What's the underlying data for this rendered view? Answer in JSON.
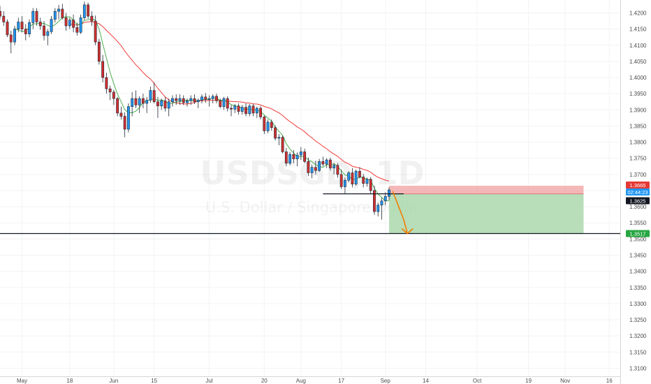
{
  "chart_data": {
    "type": "candlestick",
    "watermark": {
      "symbol": "USDSGD, 1D",
      "description": "U.S. Dollar / Singapore Dollar"
    },
    "y_axis": {
      "ticks": [
        "1.4200",
        "1.4150",
        "1.4100",
        "1.4050",
        "1.4000",
        "1.3950",
        "1.3900",
        "1.3850",
        "1.3800",
        "1.3750",
        "1.3700",
        "1.3650",
        "1.3600",
        "1.3550",
        "1.3500",
        "1.3450",
        "1.3400",
        "1.3350",
        "1.3300",
        "1.3250",
        "1.3200",
        "1.3150",
        "1.3100"
      ],
      "range": [
        1.3075,
        1.424
      ]
    },
    "x_axis": {
      "ticks": [
        {
          "label": "May",
          "x": 0
        },
        {
          "label": "18",
          "x": 13
        },
        {
          "label": "Jun",
          "x": 25
        },
        {
          "label": "15",
          "x": 36
        },
        {
          "label": "Jul",
          "x": 51
        },
        {
          "label": "20",
          "x": 66
        },
        {
          "label": "Aug",
          "x": 76
        },
        {
          "label": "17",
          "x": 87
        },
        {
          "label": "Sep",
          "x": 99
        },
        {
          "label": "14",
          "x": 110
        },
        {
          "label": "Oct",
          "x": 124
        },
        {
          "label": "19",
          "x": 138
        },
        {
          "label": "Nov",
          "x": 148
        },
        {
          "label": "16",
          "x": 160
        }
      ],
      "range": [
        -6,
        163
      ]
    },
    "colors": {
      "up": "#2196f3",
      "down": "#d32f2f",
      "fast_ma": "#4caf50",
      "slow_ma": "#f23b3b"
    },
    "candles": [
      [
        -6,
        1.4205,
        1.4222,
        1.418,
        1.419
      ],
      [
        -5,
        1.419,
        1.4205,
        1.416,
        1.4172
      ],
      [
        -4,
        1.4172,
        1.418,
        1.4125,
        1.4132
      ],
      [
        -3,
        1.4132,
        1.4145,
        1.4075,
        1.411
      ],
      [
        -2,
        1.411,
        1.416,
        1.41,
        1.415
      ],
      [
        -1,
        1.415,
        1.4185,
        1.414,
        1.4172
      ],
      [
        0,
        1.4172,
        1.419,
        1.414,
        1.415
      ],
      [
        1,
        1.415,
        1.4165,
        1.4115,
        1.4135
      ],
      [
        2,
        1.4135,
        1.418,
        1.4125,
        1.417
      ],
      [
        3,
        1.417,
        1.4215,
        1.415,
        1.4205
      ],
      [
        4,
        1.4205,
        1.4215,
        1.416,
        1.4172
      ],
      [
        5,
        1.4172,
        1.4185,
        1.4148,
        1.416
      ],
      [
        6,
        1.416,
        1.4175,
        1.4115,
        1.413
      ],
      [
        7,
        1.413,
        1.415,
        1.41,
        1.4142
      ],
      [
        8,
        1.4142,
        1.419,
        1.4135,
        1.418
      ],
      [
        9,
        1.418,
        1.4215,
        1.417,
        1.4205
      ],
      [
        10,
        1.4205,
        1.4225,
        1.418,
        1.4212
      ],
      [
        11,
        1.4212,
        1.4228,
        1.418,
        1.4185
      ],
      [
        12,
        1.4185,
        1.42,
        1.4145,
        1.416
      ],
      [
        13,
        1.416,
        1.4185,
        1.415,
        1.4178
      ],
      [
        14,
        1.4178,
        1.4195,
        1.414,
        1.4155
      ],
      [
        15,
        1.4155,
        1.417,
        1.413,
        1.414
      ],
      [
        16,
        1.414,
        1.4195,
        1.4135,
        1.4185
      ],
      [
        17,
        1.4185,
        1.4235,
        1.4178,
        1.4225
      ],
      [
        18,
        1.4225,
        1.4232,
        1.4182,
        1.419
      ],
      [
        19,
        1.419,
        1.4205,
        1.416,
        1.4175
      ],
      [
        20,
        1.4175,
        1.4192,
        1.41,
        1.411
      ],
      [
        21,
        1.411,
        1.412,
        1.404,
        1.405
      ],
      [
        22,
        1.405,
        1.407,
        1.3985,
        1.4
      ],
      [
        23,
        1.4,
        1.4015,
        1.395,
        1.3965
      ],
      [
        24,
        1.3965,
        1.3975,
        1.393,
        1.3955
      ],
      [
        25,
        1.3955,
        1.3962,
        1.3915,
        1.3935
      ],
      [
        26,
        1.3935,
        1.394,
        1.388,
        1.389
      ],
      [
        27,
        1.389,
        1.391,
        1.387,
        1.388
      ],
      [
        28,
        1.388,
        1.3892,
        1.3815,
        1.384
      ],
      [
        29,
        1.384,
        1.392,
        1.383,
        1.391
      ],
      [
        30,
        1.391,
        1.3955,
        1.388,
        1.3935
      ],
      [
        31,
        1.3935,
        1.396,
        1.3905,
        1.3915
      ],
      [
        32,
        1.3915,
        1.3942,
        1.389,
        1.3935
      ],
      [
        33,
        1.3935,
        1.395,
        1.3905,
        1.392
      ],
      [
        34,
        1.392,
        1.394,
        1.389,
        1.393
      ],
      [
        35,
        1.393,
        1.3972,
        1.3922,
        1.396
      ],
      [
        36,
        1.396,
        1.3985,
        1.392,
        1.3925
      ],
      [
        37,
        1.3925,
        1.394,
        1.3875,
        1.3912
      ],
      [
        38,
        1.3912,
        1.3935,
        1.39,
        1.3928
      ],
      [
        39,
        1.3928,
        1.394,
        1.3895,
        1.3905
      ],
      [
        40,
        1.3905,
        1.3935,
        1.388,
        1.3925
      ],
      [
        41,
        1.3925,
        1.3945,
        1.391,
        1.3935
      ],
      [
        42,
        1.3935,
        1.3948,
        1.3915,
        1.3928
      ],
      [
        43,
        1.3928,
        1.3948,
        1.3915,
        1.3935
      ],
      [
        44,
        1.3935,
        1.3945,
        1.3915,
        1.3922
      ],
      [
        45,
        1.3922,
        1.3935,
        1.391,
        1.3928
      ],
      [
        46,
        1.3928,
        1.3945,
        1.3915,
        1.3935
      ],
      [
        47,
        1.3935,
        1.3948,
        1.3918,
        1.3925
      ],
      [
        48,
        1.3925,
        1.3935,
        1.3905,
        1.393
      ],
      [
        49,
        1.393,
        1.3948,
        1.392,
        1.394
      ],
      [
        50,
        1.394,
        1.3952,
        1.3922,
        1.3932
      ],
      [
        51,
        1.3932,
        1.3945,
        1.391,
        1.3935
      ],
      [
        52,
        1.3935,
        1.3948,
        1.392,
        1.3942
      ],
      [
        53,
        1.3942,
        1.395,
        1.392,
        1.3928
      ],
      [
        54,
        1.3928,
        1.3935,
        1.3905,
        1.391
      ],
      [
        55,
        1.391,
        1.394,
        1.39,
        1.3935
      ],
      [
        56,
        1.3935,
        1.3942,
        1.3895,
        1.3905
      ],
      [
        57,
        1.3905,
        1.3915,
        1.388,
        1.3902
      ],
      [
        58,
        1.3902,
        1.3918,
        1.389,
        1.3912
      ],
      [
        59,
        1.3912,
        1.392,
        1.3885,
        1.3895
      ],
      [
        60,
        1.3895,
        1.3915,
        1.3885,
        1.3908
      ],
      [
        61,
        1.3908,
        1.392,
        1.388,
        1.3888
      ],
      [
        62,
        1.3888,
        1.3918,
        1.388,
        1.3912
      ],
      [
        63,
        1.3912,
        1.3918,
        1.388,
        1.389
      ],
      [
        64,
        1.389,
        1.391,
        1.3875,
        1.3905
      ],
      [
        65,
        1.3905,
        1.3912,
        1.387,
        1.3878
      ],
      [
        66,
        1.3878,
        1.3882,
        1.3825,
        1.3835
      ],
      [
        67,
        1.3835,
        1.387,
        1.3828,
        1.3862
      ],
      [
        68,
        1.3862,
        1.387,
        1.3835,
        1.3845
      ],
      [
        69,
        1.3845,
        1.3852,
        1.3805,
        1.3812
      ],
      [
        70,
        1.3812,
        1.3825,
        1.379,
        1.3815
      ],
      [
        71,
        1.3815,
        1.382,
        1.3765,
        1.377
      ],
      [
        72,
        1.377,
        1.3782,
        1.3725,
        1.3735
      ],
      [
        73,
        1.3735,
        1.377,
        1.3728,
        1.3762
      ],
      [
        74,
        1.3762,
        1.3775,
        1.3735,
        1.3748
      ],
      [
        75,
        1.3748,
        1.3768,
        1.3725,
        1.376
      ],
      [
        76,
        1.376,
        1.3785,
        1.3745,
        1.377
      ],
      [
        77,
        1.377,
        1.378,
        1.3735,
        1.374
      ],
      [
        78,
        1.374,
        1.3752,
        1.3695,
        1.3705
      ],
      [
        79,
        1.3705,
        1.373,
        1.3688,
        1.3722
      ],
      [
        80,
        1.3722,
        1.3742,
        1.37,
        1.3712
      ],
      [
        81,
        1.3712,
        1.3748,
        1.3708,
        1.374
      ],
      [
        82,
        1.374,
        1.3755,
        1.3725,
        1.3732
      ],
      [
        83,
        1.3732,
        1.375,
        1.372,
        1.3745
      ],
      [
        84,
        1.3745,
        1.3752,
        1.3712,
        1.372
      ],
      [
        85,
        1.372,
        1.3735,
        1.37,
        1.3728
      ],
      [
        86,
        1.3728,
        1.3735,
        1.369,
        1.37
      ],
      [
        87,
        1.37,
        1.3715,
        1.3655,
        1.3662
      ],
      [
        88,
        1.3662,
        1.369,
        1.364,
        1.3682
      ],
      [
        89,
        1.3682,
        1.371,
        1.3675,
        1.3705
      ],
      [
        90,
        1.3705,
        1.372,
        1.366,
        1.367
      ],
      [
        91,
        1.367,
        1.3715,
        1.3665,
        1.371
      ],
      [
        92,
        1.371,
        1.3722,
        1.3688,
        1.3692
      ],
      [
        93,
        1.3692,
        1.3702,
        1.366,
        1.3672
      ],
      [
        94,
        1.3672,
        1.369,
        1.3662,
        1.3685
      ],
      [
        95,
        1.3685,
        1.3692,
        1.364,
        1.365
      ],
      [
        96,
        1.365,
        1.3665,
        1.3575,
        1.3585
      ],
      [
        97,
        1.3585,
        1.3612,
        1.357,
        1.3605
      ],
      [
        98,
        1.3605,
        1.3628,
        1.356,
        1.3618
      ],
      [
        99,
        1.3618,
        1.3645,
        1.3605,
        1.3632
      ],
      [
        100,
        1.3632,
        1.366,
        1.362,
        1.3652
      ]
    ],
    "annotations": {
      "resistance": {
        "x_start": 82,
        "x_end": 104,
        "y": 1.364
      },
      "support": {
        "y": 1.3517
      },
      "position": {
        "x_start": 100,
        "x_end": 153,
        "entry": 1.364,
        "stop": 1.3665,
        "target": 1.3517
      },
      "arrow": {
        "from": [
          101,
          1.3648
        ],
        "mid": [
          104,
          1.356
        ],
        "to": [
          105,
          1.3517
        ]
      }
    },
    "price_badges": [
      {
        "value": "1.3665",
        "color": "#e53935"
      },
      {
        "value": "02:44:23",
        "color": "#2196f3"
      },
      {
        "value": "1.3625",
        "color": "#131722"
      },
      {
        "value": "1.3517",
        "color": "#26a641"
      }
    ]
  }
}
